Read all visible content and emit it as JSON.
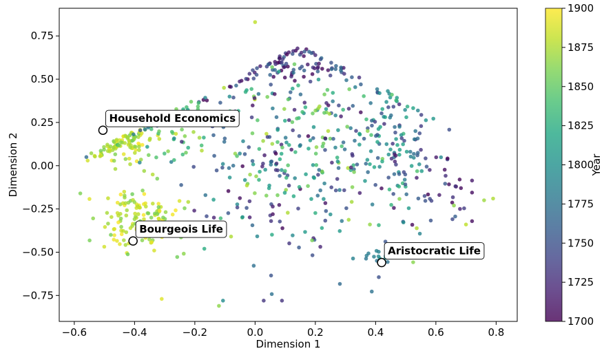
{
  "chart_data": {
    "type": "scatter",
    "xlabel": "Dimension 1",
    "ylabel": "Dimension 2",
    "xlim": [
      -0.65,
      0.87
    ],
    "ylim": [
      -0.9,
      0.91
    ],
    "xticks": [
      -0.6,
      -0.4,
      -0.2,
      0.0,
      0.2,
      0.4,
      0.6,
      0.8
    ],
    "xtick_labels": [
      "−0.6",
      "−0.4",
      "−0.2",
      "0.0",
      "0.2",
      "0.4",
      "0.6",
      "0.8"
    ],
    "yticks": [
      -0.75,
      -0.5,
      -0.25,
      0.0,
      0.25,
      0.5,
      0.75
    ],
    "ytick_labels": [
      "−0.75",
      "−0.50",
      "−0.25",
      "0.00",
      "0.25",
      "0.50",
      "0.75"
    ],
    "grid": false,
    "colormap": "viridis",
    "colorbar": {
      "label": "Year",
      "range": [
        1700,
        1900
      ],
      "ticks": [
        1700,
        1725,
        1750,
        1775,
        1800,
        1825,
        1850,
        1875,
        1900
      ],
      "tick_labels": [
        "1700",
        "1725",
        "1750",
        "1775",
        "1800",
        "1825",
        "1850",
        "1875",
        "1900"
      ]
    },
    "clusters": [
      {
        "x": -0.45,
        "y": 0.15,
        "sx": 0.05,
        "sy": 0.07,
        "n": 90,
        "year": [
          1855,
          1900
        ]
      },
      {
        "x": -0.38,
        "y": -0.32,
        "sx": 0.07,
        "sy": 0.09,
        "n": 130,
        "year": [
          1855,
          1900
        ]
      },
      {
        "x": -0.33,
        "y": 0.18,
        "sx": 0.07,
        "sy": 0.06,
        "n": 30,
        "year": [
          1835,
          1890
        ]
      },
      {
        "x": 0.14,
        "y": 0.58,
        "sx": 0.1,
        "sy": 0.08,
        "n": 90,
        "year": [
          1700,
          1770
        ]
      },
      {
        "x": 0.45,
        "y": 0.12,
        "sx": 0.07,
        "sy": 0.2,
        "n": 120,
        "year": [
          1725,
          1835
        ]
      },
      {
        "x": 0.41,
        "y": -0.53,
        "sx": 0.02,
        "sy": 0.02,
        "n": 15,
        "year": [
          1775,
          1800
        ]
      },
      {
        "x": 0.12,
        "y": 0.05,
        "sx": 0.2,
        "sy": 0.28,
        "n": 310,
        "year": [
          1700,
          1880
        ]
      },
      {
        "x": 0.62,
        "y": -0.15,
        "sx": 0.08,
        "sy": 0.12,
        "n": 30,
        "year": [
          1700,
          1760
        ]
      },
      {
        "x": -0.18,
        "y": 0.3,
        "sx": 0.1,
        "sy": 0.14,
        "n": 40,
        "year": [
          1740,
          1860
        ]
      }
    ],
    "outliers": [
      {
        "x": 0.0,
        "y": 0.83,
        "year": 1880
      },
      {
        "x": -0.58,
        "y": -0.16,
        "year": 1860
      },
      {
        "x": -0.56,
        "y": 0.05,
        "year": 1770
      },
      {
        "x": 0.79,
        "y": -0.19,
        "year": 1875
      },
      {
        "x": 0.7,
        "y": -0.34,
        "year": 1880
      },
      {
        "x": 0.76,
        "y": -0.2,
        "year": 1870
      },
      {
        "x": -0.31,
        "y": -0.77,
        "year": 1890
      },
      {
        "x": -0.12,
        "y": -0.81,
        "year": 1865
      },
      {
        "x": 0.66,
        "y": -0.23,
        "year": 1865
      },
      {
        "x": 0.68,
        "y": -0.25,
        "year": 1720
      }
    ],
    "annotations": [
      {
        "text": "Household Economics",
        "x": -0.505,
        "y": 0.205
      },
      {
        "text": "Bourgeois Life",
        "x": -0.405,
        "y": -0.435
      },
      {
        "text": "Aristocratic Life",
        "x": 0.42,
        "y": -0.56
      }
    ]
  }
}
